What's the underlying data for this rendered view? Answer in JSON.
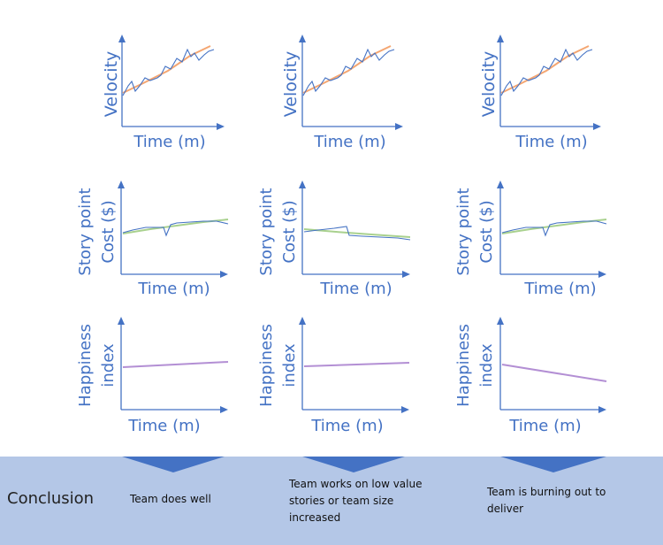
{
  "columns": [
    {
      "velocity_label": "Velocity",
      "cost_label_line1": "Story point",
      "cost_label_line2": "Cost ($)",
      "happiness_label_line1": "Happiness",
      "happiness_label_line2": "index",
      "time_label": "Time (m)",
      "conclusion": "Team does well"
    },
    {
      "velocity_label": "Velocity",
      "cost_label_line1": "Story point",
      "cost_label_line2": "Cost ($)",
      "happiness_label_line1": "Happiness",
      "happiness_label_line2": "index",
      "time_label": "Time (m)",
      "conclusion": "Team works on low value stories or team size increased"
    },
    {
      "velocity_label": "Velocity",
      "cost_label_line1": "Story point",
      "cost_label_line2": "Cost ($)",
      "happiness_label_line1": "Happiness",
      "happiness_label_line2": "index",
      "time_label": "Time (m)",
      "conclusion": "Team is burning out to deliver"
    }
  ],
  "conclusion_title": "Conclusion",
  "colors": {
    "axis": "#4472c4",
    "actual_line": "#4472c4",
    "velocity_trend": "#f4a672",
    "cost_trend": "#a9d18e",
    "happiness_line": "#b38fd4",
    "conclusion_band": "#b4c7e7"
  }
}
